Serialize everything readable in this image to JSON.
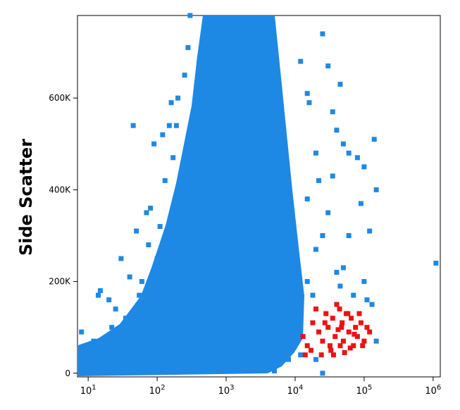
{
  "chart_data": {
    "type": "scatter",
    "y_label": "Side Scatter",
    "xscale": "log",
    "xlim": [
      7,
      1270000
    ],
    "ylim": [
      -8000,
      780000
    ],
    "xticks": [
      {
        "value": 10,
        "label": "10",
        "exponent": "1"
      },
      {
        "value": 100,
        "label": "10",
        "exponent": "2"
      },
      {
        "value": 1000,
        "label": "10",
        "exponent": "3"
      },
      {
        "value": 10000,
        "label": "10",
        "exponent": "4"
      },
      {
        "value": 100000,
        "label": "10",
        "exponent": "5"
      },
      {
        "value": 1000000,
        "label": "10",
        "exponent": "6"
      }
    ],
    "yticks": [
      {
        "value": 0,
        "label": "0"
      },
      {
        "value": 200000,
        "label": "200K"
      },
      {
        "value": 400000,
        "label": "400K"
      },
      {
        "value": 600000,
        "label": "600K"
      }
    ],
    "series": [
      {
        "color": "#1e88e5",
        "x": [
          8,
          10,
          12,
          15,
          14,
          20,
          25,
          40,
          50,
          45,
          70,
          80,
          90,
          100,
          120,
          150,
          160,
          200,
          250,
          300,
          280,
          30,
          60,
          35,
          18,
          22,
          55,
          75,
          110,
          130,
          170,
          190,
          12000,
          15000,
          16000,
          20000,
          22000,
          25000,
          30000,
          35000,
          40000,
          45000,
          50000,
          60000,
          80000,
          100000,
          140000,
          150000,
          120000,
          90000,
          60000,
          30000,
          25000,
          40000,
          50000,
          70000,
          100000,
          110000,
          1100000,
          20000,
          15000,
          45000,
          130000,
          35000,
          1000,
          500,
          300,
          3000,
          5000,
          8000,
          12000,
          20000,
          25000,
          150000,
          12000,
          15000,
          18000
        ],
        "values": [
          90000,
          30000,
          70000,
          180000,
          170000,
          160000,
          140000,
          210000,
          310000,
          540000,
          350000,
          360000,
          500000,
          250000,
          520000,
          540000,
          590000,
          600000,
          650000,
          780000,
          710000,
          250000,
          200000,
          120000,
          60000,
          100000,
          170000,
          280000,
          320000,
          420000,
          470000,
          540000,
          680000,
          610000,
          590000,
          480000,
          420000,
          740000,
          670000,
          570000,
          530000,
          630000,
          500000,
          480000,
          470000,
          450000,
          510000,
          400000,
          310000,
          370000,
          300000,
          350000,
          300000,
          220000,
          230000,
          170000,
          200000,
          160000,
          240000,
          270000,
          380000,
          190000,
          150000,
          430000,
          10000,
          20000,
          15000,
          20000,
          5000,
          30000,
          40000,
          30000,
          0,
          70000,
          120000,
          200000,
          170000
        ]
      },
      {
        "color": "#ee1111",
        "x": [
          13000,
          15000,
          18000,
          20000,
          22000,
          25000,
          28000,
          30000,
          32000,
          35000,
          38000,
          40000,
          42000,
          45000,
          48000,
          50000,
          55000,
          60000,
          65000,
          70000,
          75000,
          80000,
          90000,
          100000,
          110000,
          120000,
          14000,
          17000,
          24000,
          33000,
          44000,
          52000,
          63000,
          85000,
          95000,
          27000,
          36000,
          47000,
          58000,
          72000
        ],
        "values": [
          80000,
          60000,
          110000,
          140000,
          90000,
          70000,
          130000,
          100000,
          60000,
          120000,
          80000,
          150000,
          95000,
          60000,
          110000,
          70000,
          130000,
          90000,
          120000,
          60000,
          100000,
          80000,
          110000,
          70000,
          100000,
          90000,
          40000,
          50000,
          40000,
          50000,
          140000,
          45000,
          55000,
          130000,
          60000,
          110000,
          40000,
          100000,
          130000,
          85000
        ]
      }
    ]
  }
}
